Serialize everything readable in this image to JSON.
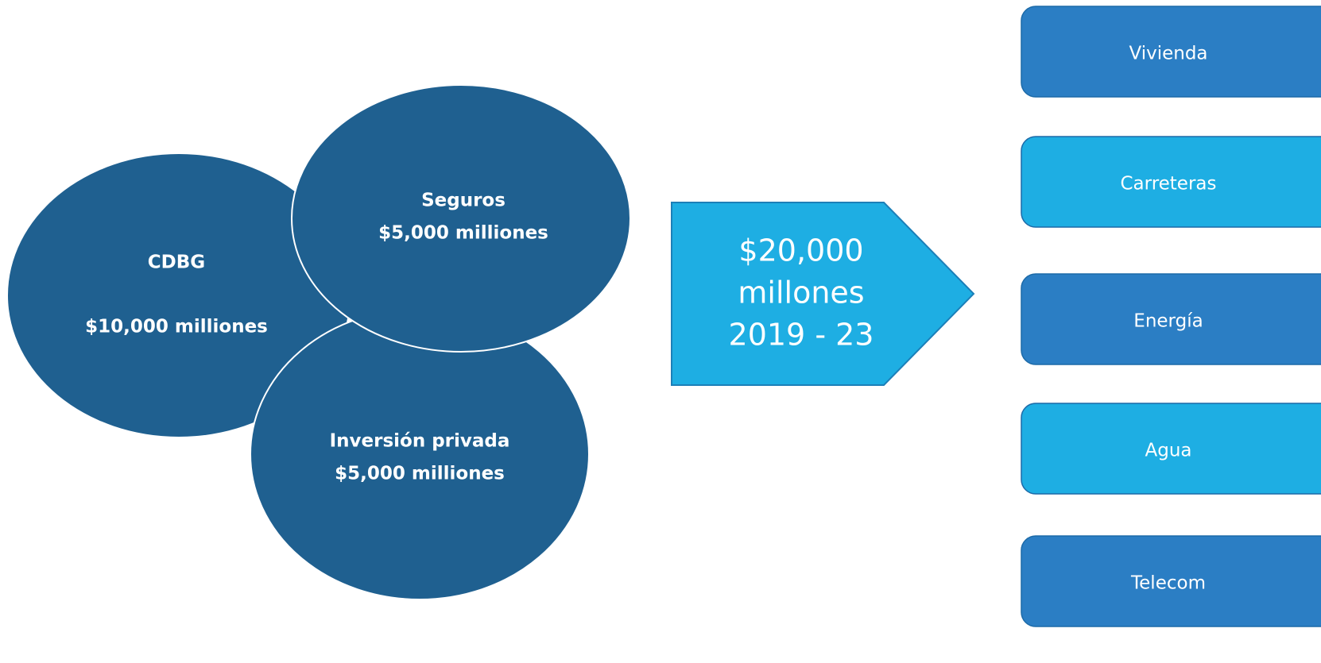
{
  "circles": [
    {
      "lines": [
        "CDBG",
        "$10,000 milliones"
      ]
    },
    {
      "lines": [
        "Inversión privada",
        "$5,000 milliones"
      ]
    },
    {
      "lines": [
        "Seguros",
        "$5,000 milliones"
      ]
    }
  ],
  "arrow": {
    "lines": [
      "$20,000",
      "millones",
      "2019 - 23"
    ]
  },
  "boxes": [
    {
      "label": "Vivienda"
    },
    {
      "label": "Carreteras"
    },
    {
      "label": "Energía"
    },
    {
      "label": "Agua"
    },
    {
      "label": "Telecom"
    }
  ]
}
